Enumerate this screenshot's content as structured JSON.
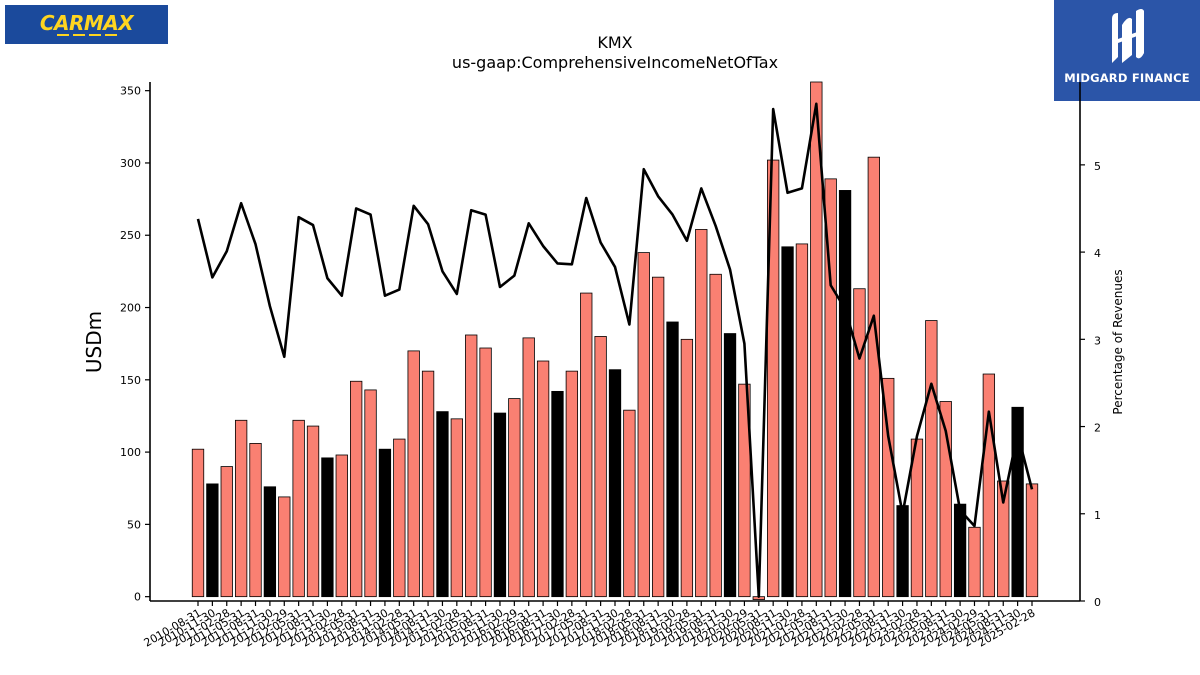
{
  "logos": {
    "left_text": "CARMAX",
    "right_text": "MIDGARD FINANCE"
  },
  "colors": {
    "bar_normal": "#fa8072",
    "bar_highlight": "#000000",
    "line": "#000000"
  },
  "chart_data": {
    "type": "bar",
    "title": "KMX",
    "subtitle": "us-gaap:ComprehensiveIncomeNetOfTax",
    "ylabel": "USDm",
    "y2label": "Percentage of Revenues",
    "ylim": [
      -3,
      356
    ],
    "y2lim": [
      0,
      5.95
    ],
    "yticks": [
      0,
      50,
      100,
      150,
      200,
      250,
      300,
      350
    ],
    "y2ticks": [
      0,
      1,
      2,
      3,
      4,
      5
    ],
    "categories": [
      "2010-08-31",
      "2010-11-30",
      "2011-02-28",
      "2011-05-31",
      "2011-08-31",
      "2011-11-30",
      "2012-02-29",
      "2012-05-31",
      "2012-08-31",
      "2012-11-30",
      "2013-02-28",
      "2013-05-31",
      "2013-08-31",
      "2013-11-30",
      "2014-02-28",
      "2014-05-31",
      "2014-08-31",
      "2014-11-30",
      "2015-02-28",
      "2015-05-31",
      "2015-08-31",
      "2015-11-30",
      "2016-02-29",
      "2016-05-31",
      "2016-08-31",
      "2016-11-30",
      "2017-02-28",
      "2017-05-31",
      "2017-08-31",
      "2017-11-30",
      "2018-02-28",
      "2018-05-31",
      "2018-08-31",
      "2018-11-30",
      "2019-02-28",
      "2019-05-31",
      "2019-08-31",
      "2019-11-30",
      "2020-02-29",
      "2020-05-31",
      "2020-08-31",
      "2020-11-30",
      "2021-02-28",
      "2021-05-31",
      "2021-08-31",
      "2021-11-30",
      "2022-02-28",
      "2022-05-31",
      "2022-08-31",
      "2022-11-30",
      "2023-02-28",
      "2023-05-31",
      "2023-08-31",
      "2023-11-30",
      "2024-02-29",
      "2024-05-31",
      "2024-08-31",
      "2024-11-30",
      "2025-02-28"
    ],
    "series": [
      {
        "type": "bar",
        "values": [
          102,
          78,
          90,
          122,
          106,
          76,
          69,
          122,
          118,
          96,
          98,
          149,
          143,
          102,
          109,
          170,
          156,
          128,
          123,
          181,
          172,
          127,
          137,
          179,
          163,
          142,
          156,
          210,
          180,
          157,
          129,
          238,
          221,
          190,
          178,
          254,
          223,
          182,
          147,
          -2,
          302,
          242,
          244,
          365,
          289,
          281,
          213,
          304,
          151,
          63,
          109,
          191,
          135,
          64,
          48,
          154,
          80,
          131,
          78
        ],
        "highlight": [
          false,
          true,
          false,
          false,
          false,
          true,
          false,
          false,
          false,
          true,
          false,
          false,
          false,
          true,
          false,
          false,
          false,
          true,
          false,
          false,
          false,
          true,
          false,
          false,
          false,
          true,
          false,
          false,
          false,
          true,
          false,
          false,
          false,
          true,
          false,
          false,
          false,
          true,
          false,
          false,
          false,
          true,
          false,
          false,
          false,
          true,
          false,
          false,
          false,
          true,
          false,
          false,
          false,
          true,
          false,
          false,
          false,
          true,
          false
        ]
      },
      {
        "type": "line",
        "axis": "right",
        "values": [
          4.38,
          3.71,
          4.01,
          4.56,
          4.09,
          3.38,
          2.8,
          4.4,
          4.31,
          3.7,
          3.5,
          4.5,
          4.43,
          3.5,
          3.57,
          4.53,
          4.32,
          3.78,
          3.52,
          4.48,
          4.43,
          3.6,
          3.73,
          4.33,
          4.07,
          3.87,
          3.86,
          4.62,
          4.11,
          3.83,
          3.17,
          4.95,
          4.64,
          4.43,
          4.13,
          4.73,
          4.3,
          3.8,
          2.95,
          0.05,
          5.64,
          4.68,
          4.73,
          5.7,
          3.62,
          3.35,
          2.78,
          3.27,
          1.89,
          1.0,
          1.89,
          2.49,
          1.95,
          1.04,
          0.86,
          2.17,
          1.13,
          1.92,
          1.28
        ]
      }
    ],
    "grid": false,
    "legend": "none"
  }
}
